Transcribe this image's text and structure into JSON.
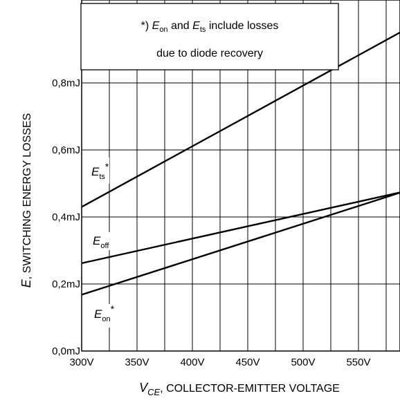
{
  "chart_data": {
    "type": "line",
    "xlabel_main": "V",
    "xlabel_sub": "CE",
    "xlabel_rest": ", COLLECTOR-EMITTER VOLTAGE",
    "ylabel_main": "E",
    "ylabel_rest": ", SWITCHING ENERGY LOSSES",
    "xlim": [
      300,
      590
    ],
    "ylim": [
      0.0,
      1.0
    ],
    "x_ticks": [
      {
        "value": 300,
        "label": "300V"
      },
      {
        "value": 350,
        "label": "350V"
      },
      {
        "value": 400,
        "label": "400V"
      },
      {
        "value": 450,
        "label": "450V"
      },
      {
        "value": 500,
        "label": "500V"
      },
      {
        "value": 550,
        "label": "550V"
      }
    ],
    "y_ticks": [
      {
        "value": 0.0,
        "label": "0,0mJ"
      },
      {
        "value": 0.2,
        "label": "0,2mJ"
      },
      {
        "value": 0.4,
        "label": "0,4mJ"
      },
      {
        "value": 0.6,
        "label": "0,6mJ"
      },
      {
        "value": 0.8,
        "label": "0,8mJ"
      }
    ],
    "x_minor_step": 25,
    "grid": true,
    "series": [
      {
        "name": "Ets*",
        "main": "E",
        "sub": "ts",
        "star": "*",
        "x": [
          300,
          590
        ],
        "y": [
          0.43,
          0.955
        ]
      },
      {
        "name": "Eoff",
        "main": "E",
        "sub": "off",
        "star": "",
        "x": [
          300,
          590
        ],
        "y": [
          0.262,
          0.475
        ]
      },
      {
        "name": "Eon*",
        "main": "E",
        "sub": "on",
        "star": "*",
        "x": [
          300,
          590
        ],
        "y": [
          0.168,
          0.475
        ]
      }
    ],
    "annotation": {
      "line1_prefix": "*) ",
      "line1_e1": "E",
      "line1_s1": "on",
      "line1_mid": " and ",
      "line1_e2": "E",
      "line1_s2": "ts",
      "line1_suffix": " include losses",
      "line2": "due to diode recovery"
    }
  }
}
